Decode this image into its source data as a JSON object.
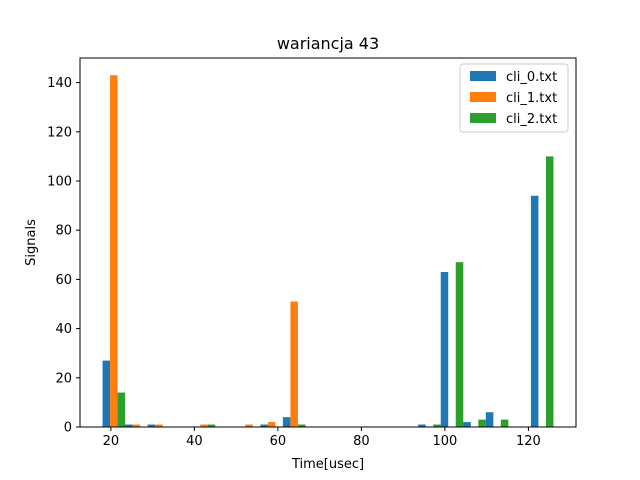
{
  "chart_data": {
    "type": "bar",
    "title": "wariancja 43",
    "xlabel": "Time[usec]",
    "ylabel": "Signals",
    "xlim": [
      12.6,
      131.4
    ],
    "ylim": [
      0,
      150
    ],
    "xticks": [
      20,
      40,
      60,
      80,
      100,
      120
    ],
    "yticks": [
      0,
      20,
      40,
      60,
      80,
      100,
      120,
      140
    ],
    "grid": false,
    "legend_position": "top-right",
    "bin_edges": [
      18,
      23.4,
      28.8,
      34.2,
      39.6,
      45,
      50.4,
      55.8,
      61.2,
      66.6,
      72,
      77.4,
      82.8,
      88.2,
      93.6,
      99,
      104.4,
      109.8,
      115.2,
      120.6,
      126
    ],
    "series": [
      {
        "name": "cli_0.txt",
        "color": "#1f77b4",
        "values": [
          27,
          1,
          1,
          0,
          0,
          0,
          0,
          1,
          4,
          0,
          0,
          0,
          0,
          0,
          1,
          63,
          2,
          6,
          0,
          94
        ]
      },
      {
        "name": "cli_1.txt",
        "color": "#ff7f0e",
        "values": [
          143,
          1,
          1,
          0,
          1,
          0,
          1,
          2,
          51,
          0,
          0,
          0,
          0,
          0,
          0,
          0,
          0,
          0,
          0,
          0
        ]
      },
      {
        "name": "cli_2.txt",
        "color": "#2ca02c",
        "values": [
          14,
          0,
          0,
          0,
          1,
          0,
          0,
          0,
          1,
          0,
          0,
          0,
          0,
          0,
          1,
          67,
          3,
          3,
          0,
          110
        ]
      }
    ]
  }
}
